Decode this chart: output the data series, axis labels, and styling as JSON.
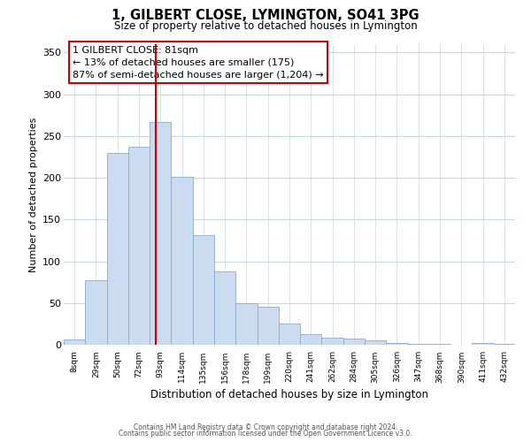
{
  "title": "1, GILBERT CLOSE, LYMINGTON, SO41 3PG",
  "subtitle": "Size of property relative to detached houses in Lymington",
  "xlabel": "Distribution of detached houses by size in Lymington",
  "ylabel": "Number of detached properties",
  "bar_labels": [
    "8sqm",
    "29sqm",
    "50sqm",
    "72sqm",
    "93sqm",
    "114sqm",
    "135sqm",
    "156sqm",
    "178sqm",
    "199sqm",
    "220sqm",
    "241sqm",
    "262sqm",
    "284sqm",
    "305sqm",
    "326sqm",
    "347sqm",
    "368sqm",
    "390sqm",
    "411sqm",
    "432sqm"
  ],
  "bar_values": [
    6,
    77,
    230,
    237,
    267,
    201,
    131,
    88,
    50,
    46,
    25,
    13,
    9,
    7,
    5,
    2,
    1,
    1,
    0,
    2,
    1
  ],
  "bar_color": "#ccdcf0",
  "bar_edge_color": "#8aaad4",
  "vline_color": "#cc0000",
  "vline_x": 4.3,
  "ylim": [
    0,
    360
  ],
  "yticks": [
    0,
    50,
    100,
    150,
    200,
    250,
    300,
    350
  ],
  "annotation_title": "1 GILBERT CLOSE: 81sqm",
  "annotation_line1": "← 13% of detached houses are smaller (175)",
  "annotation_line2": "87% of semi-detached houses are larger (1,204) →",
  "footer_line1": "Contains HM Land Registry data © Crown copyright and database right 2024.",
  "footer_line2": "Contains public sector information licensed under the Open Government Licence v3.0.",
  "background_color": "#ffffff",
  "grid_color": "#c8d8e8"
}
